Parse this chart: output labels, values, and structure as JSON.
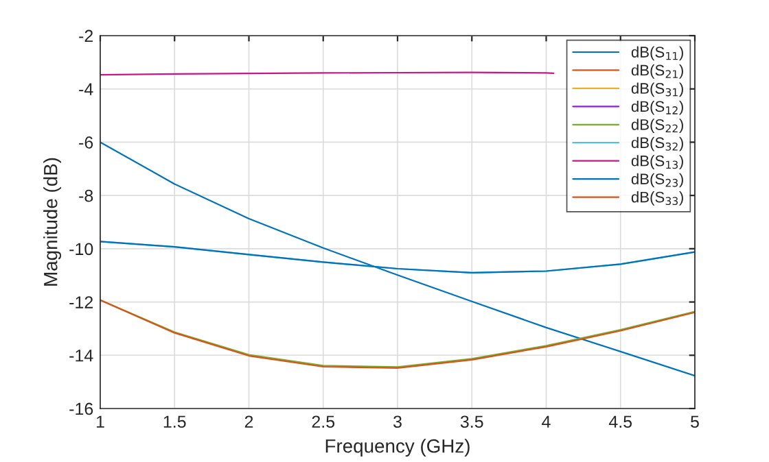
{
  "chart_data": {
    "type": "line",
    "xlabel": "Frequency (GHz)",
    "ylabel": "Magnitude (dB)",
    "x": [
      1,
      1.5,
      2,
      2.5,
      3,
      3.5,
      4,
      4.5,
      5
    ],
    "series": [
      {
        "name": "dB(S$_{11}$)",
        "color": "#0072bd",
        "values": [
          -6.0,
          -7.57,
          -8.87,
          -9.97,
          -10.99,
          -11.98,
          -12.96,
          -13.86,
          -14.77
        ]
      },
      {
        "name": "dB(S$_{21}$)",
        "color": "#d95319",
        "values": [
          null,
          null,
          null,
          null,
          null,
          null,
          null,
          null,
          null
        ]
      },
      {
        "name": "dB(S$_{31}$)",
        "color": "#edb120",
        "values": [
          null,
          null,
          null,
          null,
          null,
          null,
          null,
          null,
          null
        ]
      },
      {
        "name": "dB(S$_{12}$)",
        "color": "#8b1fd4",
        "values": [
          null,
          null,
          null,
          null,
          null,
          null,
          null,
          null,
          null
        ]
      },
      {
        "name": "dB(S$_{22}$)",
        "color": "#77ac30",
        "values": [
          -11.93,
          -13.13,
          -13.98,
          -14.39,
          -14.44,
          -14.13,
          -13.64,
          -13.04,
          -12.36
        ]
      },
      {
        "name": "dB(S$_{32}$)",
        "color": "#4dbeee",
        "values": [
          -9.73,
          -9.93,
          -10.22,
          -10.5,
          -10.75,
          -10.9,
          -10.84,
          -10.58,
          -10.12
        ]
      },
      {
        "name": "dB(S$_{13}$)",
        "color": "#c7158c",
        "x": [
          1,
          1.5,
          2,
          2.5,
          3,
          3.5,
          4,
          4.05
        ],
        "values": [
          -3.47,
          -3.44,
          -3.42,
          -3.4,
          -3.39,
          -3.38,
          -3.4,
          -3.41
        ]
      },
      {
        "name": "dB(S$_{23}$)",
        "color": "#0072bd",
        "values": [
          -9.73,
          -9.93,
          -10.22,
          -10.5,
          -10.75,
          -10.9,
          -10.84,
          -10.58,
          -10.12
        ]
      },
      {
        "name": "dB(S$_{33}$)",
        "color": "#d95319",
        "values": [
          -11.93,
          -13.16,
          -14.02,
          -14.43,
          -14.48,
          -14.17,
          -13.68,
          -13.08,
          -12.39
        ]
      }
    ],
    "xlim": [
      1,
      5
    ],
    "ylim": [
      -16,
      -2
    ],
    "xticks": [
      1,
      1.5,
      2,
      2.5,
      3,
      3.5,
      4,
      4.5,
      5
    ],
    "yticks": [
      -16,
      -14,
      -12,
      -10,
      -8,
      -6,
      -4,
      -2
    ],
    "grid": true,
    "legend": "top right",
    "line_style": "solid",
    "marker": "none"
  }
}
